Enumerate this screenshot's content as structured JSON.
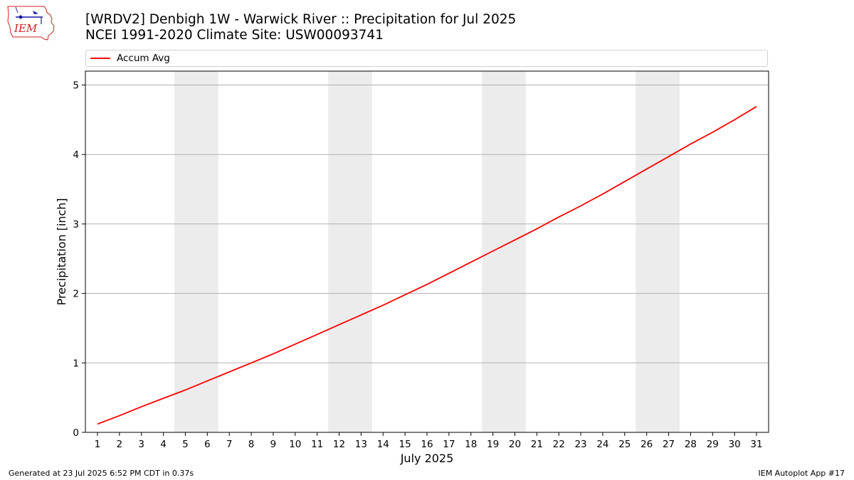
{
  "header": {
    "title_line1": "[WRDV2] Denbigh 1W - Warwick River :: Precipitation for Jul 2025",
    "title_line2": "NCEI 1991-2020 Climate Site: USW00093741",
    "logo_text": "IEM"
  },
  "footer": {
    "generated": "Generated at 23 Jul 2025 6:52 PM CDT in 0.37s",
    "app": "IEM Autoplot App #17"
  },
  "chart_data": {
    "type": "line",
    "title": "[WRDV2] Denbigh 1W - Warwick River :: Precipitation for Jul 2025",
    "subtitle": "NCEI 1991-2020 Climate Site: USW00093741",
    "xlabel": "July 2025",
    "ylabel": "Precipitation [inch]",
    "x": [
      1,
      2,
      3,
      4,
      5,
      6,
      7,
      8,
      9,
      10,
      11,
      12,
      13,
      14,
      15,
      16,
      17,
      18,
      19,
      20,
      21,
      22,
      23,
      24,
      25,
      26,
      27,
      28,
      29,
      30,
      31
    ],
    "xlim": [
      0.45,
      31.55
    ],
    "ylim": [
      0,
      5.2
    ],
    "yticks": [
      0,
      1,
      2,
      3,
      4,
      5
    ],
    "grid": "horizontal",
    "legend_position": "top",
    "weekend_bands": [
      [
        5,
        6
      ],
      [
        12,
        13
      ],
      [
        19,
        20
      ],
      [
        26,
        27
      ]
    ],
    "series": [
      {
        "name": "Accum Avg",
        "color": "#ff0000",
        "values": [
          0.12,
          0.24,
          0.37,
          0.49,
          0.61,
          0.74,
          0.87,
          1.0,
          1.13,
          1.27,
          1.41,
          1.55,
          1.69,
          1.83,
          1.98,
          2.13,
          2.29,
          2.45,
          2.61,
          2.77,
          2.93,
          3.1,
          3.26,
          3.43,
          3.61,
          3.79,
          3.97,
          4.15,
          4.32,
          4.5,
          4.69
        ]
      }
    ]
  },
  "colors": {
    "weekend_band": "#ececec",
    "grid": "#b0b0b0",
    "logo_blue": "#1a1aa6",
    "logo_red": "#cc2222"
  }
}
